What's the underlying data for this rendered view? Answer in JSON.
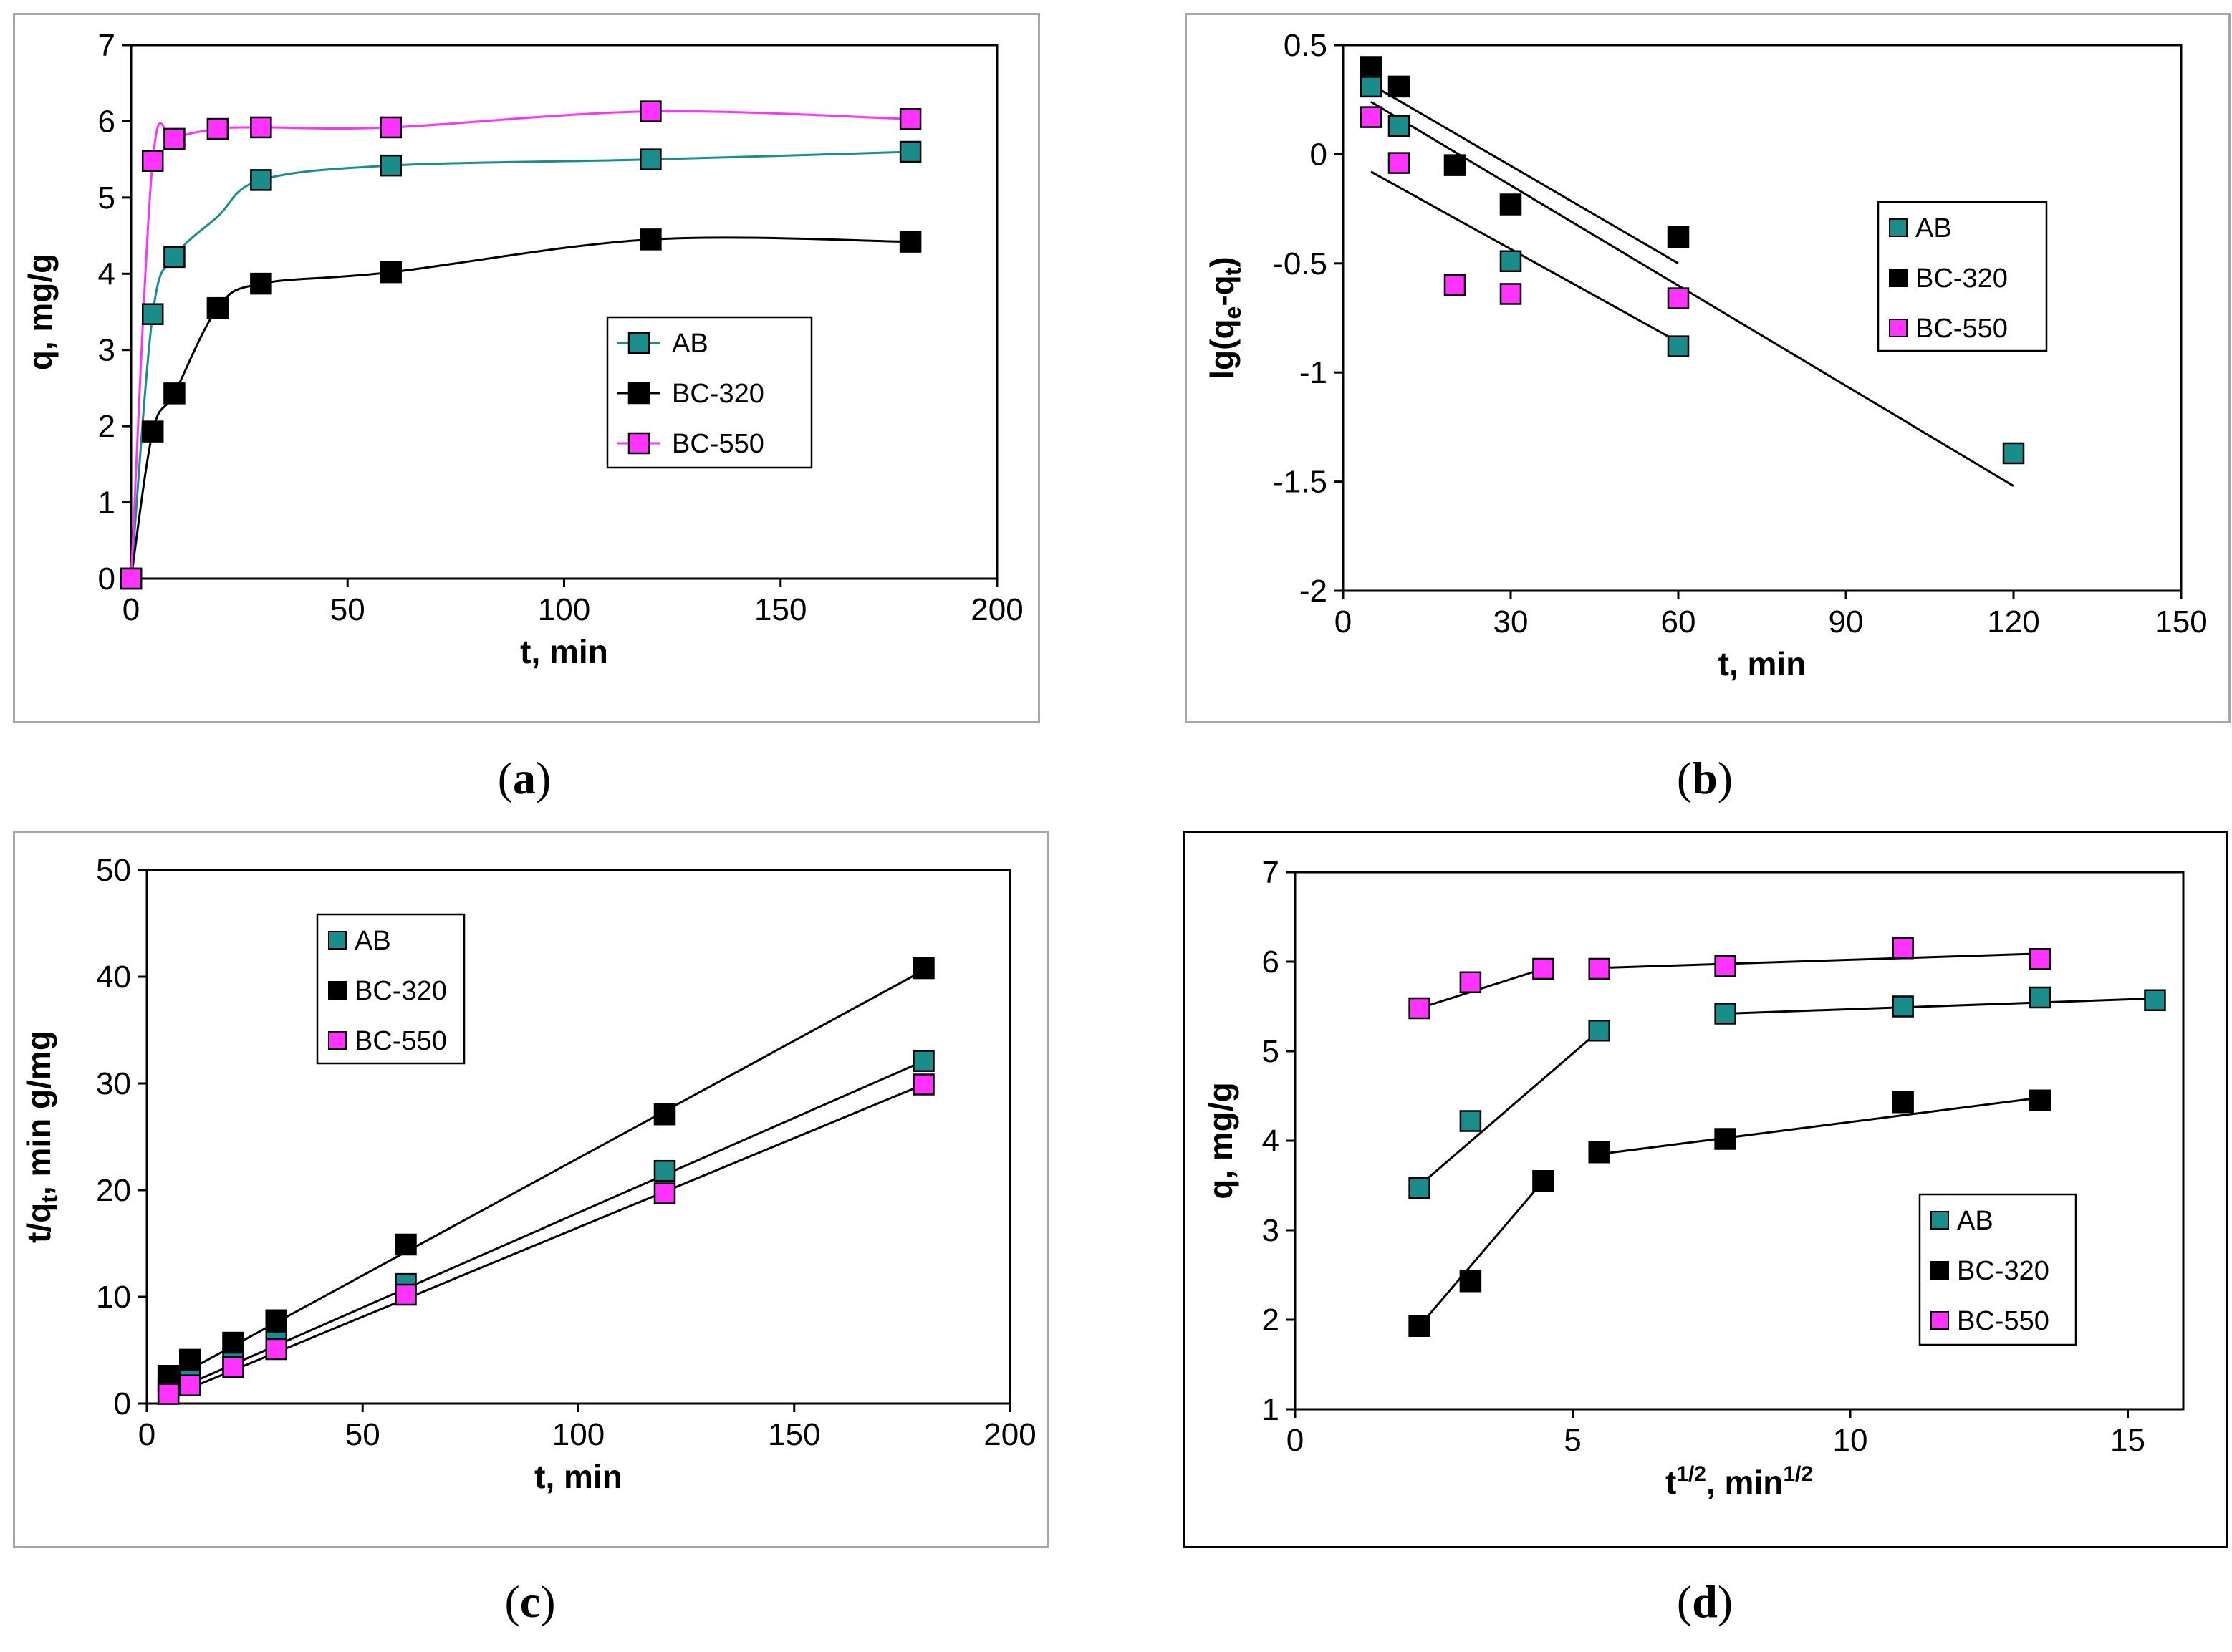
{
  "colors": {
    "AB": "#1a8c8c",
    "BC-320": "#000000",
    "BC-550": "#ff33ff",
    "line_a_AB": "#1a8c8c",
    "line_a_BC-320": "#000000",
    "line_a_BC-550": "#ff33ff",
    "fit_line": "#000000"
  },
  "captions": {
    "a": "a",
    "b": "b",
    "c": "c",
    "d": "d"
  },
  "chart_data": [
    {
      "id": "a",
      "type": "line",
      "xlabel": "t, min",
      "ylabel": "q, mg/g",
      "xlim": [
        0,
        200
      ],
      "ylim": [
        0,
        7
      ],
      "xticks": [
        0,
        50,
        100,
        150,
        200
      ],
      "yticks": [
        0,
        1,
        2,
        3,
        4,
        5,
        6,
        7
      ],
      "legend": {
        "position": "center-right",
        "entries": [
          "AB",
          "BC-320",
          "BC-550"
        ],
        "with_line": true
      },
      "smooth": true,
      "series": [
        {
          "name": "AB",
          "points": [
            [
              0,
              0
            ],
            [
              5,
              3.47
            ],
            [
              10,
              4.22
            ],
            [
              20,
              4.75
            ],
            [
              30,
              5.23
            ],
            [
              60,
              5.42
            ],
            [
              120,
              5.5
            ],
            [
              180,
              5.6
            ]
          ]
        },
        {
          "name": "BC-320",
          "points": [
            [
              0,
              0
            ],
            [
              5,
              1.93
            ],
            [
              10,
              2.43
            ],
            [
              20,
              3.55
            ],
            [
              30,
              3.87
            ],
            [
              60,
              4.02
            ],
            [
              120,
              4.45
            ],
            [
              180,
              4.42
            ]
          ]
        },
        {
          "name": "BC-550",
          "points": [
            [
              0,
              0
            ],
            [
              5,
              5.48
            ],
            [
              10,
              5.77
            ],
            [
              20,
              5.9
            ],
            [
              30,
              5.92
            ],
            [
              60,
              5.92
            ],
            [
              120,
              6.13
            ],
            [
              180,
              6.03
            ]
          ]
        }
      ],
      "hidden_markers": [
        {
          "series": "AB",
          "x": 20
        }
      ]
    },
    {
      "id": "b",
      "type": "scatter",
      "xlabel": "t, min",
      "ylabel_parts": [
        "lg(q",
        "e",
        "-q",
        "t",
        ")"
      ],
      "xlim": [
        0,
        150
      ],
      "ylim": [
        -2,
        0.5
      ],
      "xticks": [
        0,
        30,
        60,
        90,
        120,
        150
      ],
      "yticks": [
        -2,
        -1.5,
        -1,
        -0.5,
        0,
        0.5
      ],
      "legend": {
        "position": "right",
        "entries": [
          "AB",
          "BC-320",
          "BC-550"
        ],
        "with_line": false
      },
      "series": [
        {
          "name": "AB",
          "points": [
            [
              5,
              0.31
            ],
            [
              10,
              0.13
            ],
            [
              30,
              -0.49
            ],
            [
              60,
              -0.88
            ],
            [
              120,
              -1.37
            ]
          ]
        },
        {
          "name": "BC-320",
          "points": [
            [
              5,
              0.4
            ],
            [
              10,
              0.31
            ],
            [
              20,
              -0.05
            ],
            [
              30,
              -0.23
            ],
            [
              60,
              -0.38
            ]
          ]
        },
        {
          "name": "BC-550",
          "points": [
            [
              5,
              0.17
            ],
            [
              10,
              -0.04
            ],
            [
              20,
              -0.6
            ],
            [
              30,
              -0.64
            ],
            [
              60,
              -0.66
            ]
          ]
        }
      ],
      "fit_lines": [
        {
          "series": "AB",
          "from": [
            5,
            0.24
          ],
          "to": [
            120,
            -1.52
          ]
        },
        {
          "series": "BC-320",
          "from": [
            5,
            0.32
          ],
          "to": [
            60,
            -0.5
          ]
        },
        {
          "series": "BC-550",
          "from": [
            5,
            -0.08
          ],
          "to": [
            60,
            -0.86
          ]
        }
      ]
    },
    {
      "id": "c",
      "type": "scatter",
      "xlabel": "t, min",
      "ylabel_parts": [
        "t/q",
        "t",
        ", min g/mg"
      ],
      "xlim": [
        0,
        200
      ],
      "ylim": [
        0,
        50
      ],
      "xticks": [
        0,
        50,
        100,
        150,
        200
      ],
      "yticks": [
        0,
        10,
        20,
        30,
        40,
        50
      ],
      "legend": {
        "position": "top-left",
        "entries": [
          "AB",
          "BC-320",
          "BC-550"
        ],
        "with_line": false
      },
      "series": [
        {
          "name": "AB",
          "points": [
            [
              5,
              1.4
            ],
            [
              10,
              2.4
            ],
            [
              20,
              4.2
            ],
            [
              30,
              5.8
            ],
            [
              60,
              11.2
            ],
            [
              120,
              21.8
            ],
            [
              180,
              32.1
            ]
          ]
        },
        {
          "name": "BC-320",
          "points": [
            [
              5,
              2.6
            ],
            [
              10,
              4.1
            ],
            [
              20,
              5.7
            ],
            [
              30,
              7.8
            ],
            [
              60,
              14.9
            ],
            [
              120,
              27.1
            ],
            [
              180,
              40.8
            ]
          ]
        },
        {
          "name": "BC-550",
          "points": [
            [
              5,
              0.9
            ],
            [
              10,
              1.7
            ],
            [
              20,
              3.4
            ],
            [
              30,
              5.1
            ],
            [
              60,
              10.2
            ],
            [
              120,
              19.7
            ],
            [
              180,
              29.9
            ]
          ]
        }
      ],
      "fit_lines": [
        {
          "series": "AB",
          "from": [
            5,
            1.0
          ],
          "to": [
            180,
            32.1
          ]
        },
        {
          "series": "BC-320",
          "from": [
            5,
            2.1
          ],
          "to": [
            180,
            40.6
          ]
        },
        {
          "series": "BC-550",
          "from": [
            5,
            0.6
          ],
          "to": [
            180,
            29.9
          ]
        }
      ]
    },
    {
      "id": "d",
      "type": "scatter",
      "xlabel_parts": [
        "t",
        "1/2",
        ", min",
        "1/2"
      ],
      "ylabel": "q, mg/g",
      "xlim": [
        0,
        16
      ],
      "ylim": [
        1,
        7
      ],
      "xticks": [
        0,
        5,
        10,
        15
      ],
      "yticks": [
        1,
        2,
        3,
        4,
        5,
        6,
        7
      ],
      "legend": {
        "position": "bottom-right",
        "entries": [
          "AB",
          "BC-320",
          "BC-550"
        ],
        "with_line": false
      },
      "series": [
        {
          "name": "AB",
          "points": [
            [
              2.24,
              3.47
            ],
            [
              3.16,
              4.22
            ],
            [
              5.48,
              5.23
            ],
            [
              7.75,
              5.42
            ],
            [
              10.95,
              5.5
            ],
            [
              13.42,
              5.6
            ],
            [
              15.49,
              5.57
            ]
          ]
        },
        {
          "name": "BC-320",
          "points": [
            [
              2.24,
              1.93
            ],
            [
              3.16,
              2.43
            ],
            [
              4.47,
              3.55
            ],
            [
              5.48,
              3.87
            ],
            [
              7.75,
              4.02
            ],
            [
              10.95,
              4.43
            ],
            [
              13.42,
              4.45
            ]
          ]
        },
        {
          "name": "BC-550",
          "points": [
            [
              2.24,
              5.48
            ],
            [
              3.16,
              5.77
            ],
            [
              4.47,
              5.92
            ],
            [
              5.48,
              5.92
            ],
            [
              7.75,
              5.95
            ],
            [
              10.95,
              6.15
            ],
            [
              13.42,
              6.03
            ]
          ]
        }
      ],
      "fit_lines": [
        {
          "series": "BC-550",
          "from": [
            2.24,
            5.48
          ],
          "to": [
            4.47,
            5.92
          ]
        },
        {
          "series": "BC-550",
          "from": [
            5.48,
            5.93
          ],
          "to": [
            13.42,
            6.09
          ]
        },
        {
          "series": "AB",
          "from": [
            2.24,
            3.5
          ],
          "to": [
            5.48,
            5.23
          ]
        },
        {
          "series": "AB",
          "from": [
            7.75,
            5.42
          ],
          "to": [
            15.49,
            5.59
          ]
        },
        {
          "series": "BC-320",
          "from": [
            2.24,
            1.93
          ],
          "to": [
            4.47,
            3.55
          ]
        },
        {
          "series": "BC-320",
          "from": [
            5.48,
            3.85
          ],
          "to": [
            13.42,
            4.48
          ]
        }
      ]
    }
  ]
}
